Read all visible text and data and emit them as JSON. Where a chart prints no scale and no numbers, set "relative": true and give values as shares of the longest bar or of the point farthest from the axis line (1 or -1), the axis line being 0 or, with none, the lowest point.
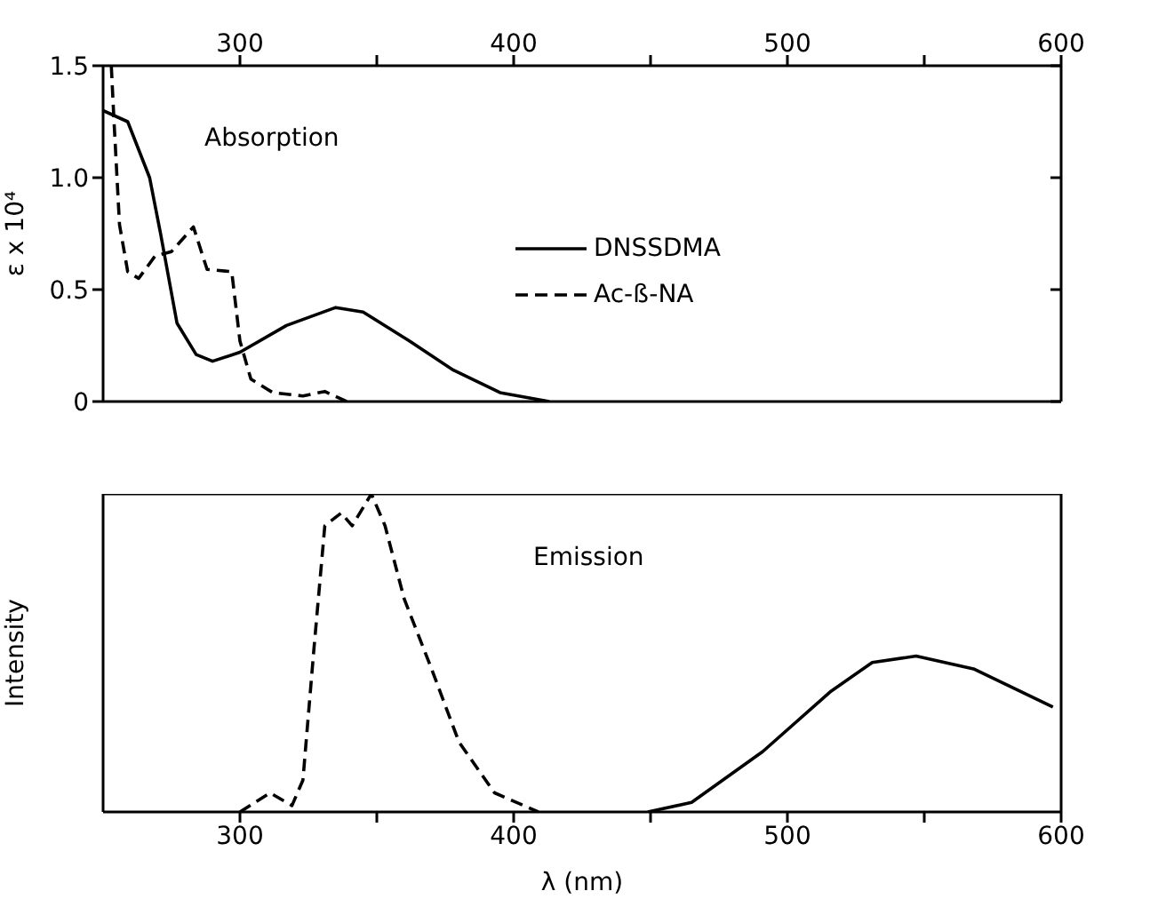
{
  "chart_data": [
    {
      "type": "line",
      "ylabel": "ε x 10⁴",
      "annotations": [
        "Absorption"
      ],
      "legend": "right",
      "marker": "none",
      "xlim": [
        250,
        600
      ],
      "xticks": [
        300,
        {
          "value": 350,
          "label": null
        },
        400,
        {
          "value": 450,
          "label": null
        },
        500,
        {
          "value": 550,
          "label": null
        },
        600
      ],
      "ylim": [
        0,
        1.5
      ],
      "yticks": [
        0,
        0.5,
        {
          "value": 1,
          "label": "1.0"
        },
        1.5
      ],
      "series": [
        {
          "name": "DNSSDMA",
          "color": "#000000",
          "line_style": "solid",
          "x": [
            250,
            259,
            267,
            271,
            277,
            284,
            290,
            300,
            317,
            335,
            345,
            362,
            378,
            395,
            413
          ],
          "values": [
            1.3,
            1.25,
            1.0,
            0.75,
            0.35,
            0.21,
            0.18,
            0.22,
            0.34,
            0.42,
            0.4,
            0.27,
            0.14,
            0.04,
            0
          ]
        },
        {
          "name": "Ac-ß-NA",
          "color": "#000000",
          "line_style": "dashed",
          "x": [
            253,
            254,
            256,
            259,
            263,
            269,
            275,
            283,
            288,
            297,
            300,
            304,
            312,
            323,
            331,
            339
          ],
          "values": [
            1.5,
            1.25,
            0.79,
            0.58,
            0.55,
            0.65,
            0.67,
            0.78,
            0.59,
            0.58,
            0.27,
            0.1,
            0.04,
            0.025,
            0.045,
            0
          ]
        }
      ]
    },
    {
      "type": "line",
      "ylabel": "Intensity",
      "xlabel": "λ (nm)",
      "annotations": [
        "Emission"
      ],
      "relative": true,
      "marker": "none",
      "xlim": [
        250,
        600
      ],
      "xticks": [
        300,
        {
          "value": 350,
          "label": null
        },
        400,
        {
          "value": 450,
          "label": null
        },
        500,
        {
          "value": 550,
          "label": null
        },
        600
      ],
      "series": [
        {
          "color": "#000000",
          "line_style": "dashed",
          "x": [
            300,
            311,
            319,
            323,
            327,
            331,
            337,
            341,
            348,
            353,
            360,
            370,
            380,
            393,
            409
          ],
          "values": [
            0,
            0.06,
            0.02,
            0.1,
            0.51,
            0.9,
            0.94,
            0.9,
            1.0,
            0.9,
            0.67,
            0.45,
            0.22,
            0.06,
            0
          ]
        },
        {
          "color": "#000000",
          "line_style": "solid",
          "x": [
            449,
            465,
            491,
            516,
            531,
            547,
            568,
            597
          ],
          "values": [
            0,
            0.03,
            0.19,
            0.38,
            0.47,
            0.49,
            0.45,
            0.33
          ]
        }
      ]
    }
  ]
}
